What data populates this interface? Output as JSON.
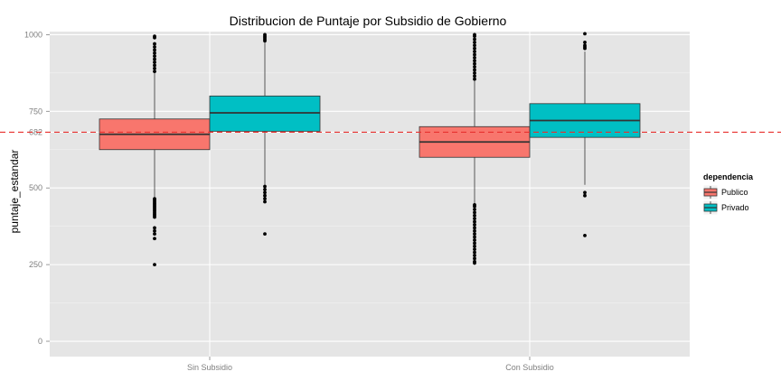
{
  "chart_data": {
    "type": "box",
    "title": "Distribucion de Puntaje por Subsidio de Gobierno",
    "xlabel": "",
    "ylabel": "puntaje_estandar",
    "ylim": [
      -50,
      1010
    ],
    "yticks": [
      0,
      250,
      500,
      682,
      750,
      1000
    ],
    "ytick_labels": [
      "0",
      "250",
      "500",
      "682",
      "750",
      "1000"
    ],
    "categories": [
      "Sin Subsidio",
      "Con Subsidio"
    ],
    "reference_line": {
      "y": 682,
      "color": "#e8312f",
      "style": "dashed"
    },
    "legend": {
      "title": "dependencia",
      "position": "right"
    },
    "grid": true,
    "series": [
      {
        "name": "Publico",
        "color": "#f8766d",
        "boxes": [
          {
            "category": "Sin Subsidio",
            "whisker_low": 470,
            "q1": 625,
            "median": 675,
            "q3": 725,
            "whisker_high": 875,
            "outliers": [
              995,
              990,
              970,
              960,
              950,
              940,
              930,
              920,
              910,
              900,
              890,
              880,
              465,
              460,
              455,
              450,
              445,
              440,
              435,
              430,
              425,
              420,
              415,
              410,
              405,
              370,
              360,
              350,
              335,
              250
            ]
          },
          {
            "category": "Con Subsidio",
            "whisker_low": 445,
            "q1": 600,
            "median": 650,
            "q3": 700,
            "whisker_high": 850,
            "outliers": [
              1000,
              995,
              985,
              975,
              965,
              955,
              945,
              935,
              925,
              915,
              905,
              895,
              885,
              875,
              865,
              855,
              445,
              440,
              430,
              420,
              410,
              400,
              390,
              380,
              370,
              360,
              350,
              340,
              330,
              320,
              310,
              300,
              290,
              280,
              270,
              260,
              255
            ]
          }
        ]
      },
      {
        "name": "Privado",
        "color": "#00bfc4",
        "boxes": [
          {
            "category": "Sin Subsidio",
            "whisker_low": 510,
            "q1": 685,
            "median": 745,
            "q3": 800,
            "whisker_high": 975,
            "outliers": [
              1000,
              995,
              990,
              985,
              980,
              505,
              495,
              485,
              475,
              465,
              455,
              350
            ]
          },
          {
            "category": "Con Subsidio",
            "whisker_low": 510,
            "q1": 665,
            "median": 720,
            "q3": 775,
            "whisker_high": 945,
            "outliers": [
              1003,
              975,
              965,
              960,
              955,
              485,
              475,
              345
            ]
          }
        ]
      }
    ]
  }
}
